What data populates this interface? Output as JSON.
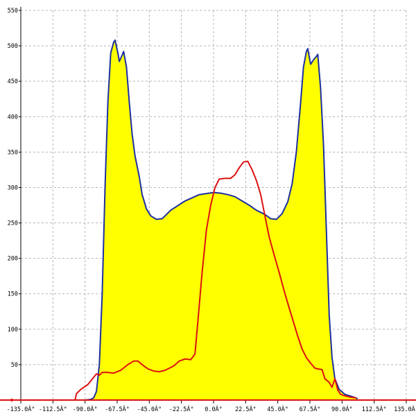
{
  "chart_data": {
    "type": "area",
    "title": "",
    "xlabel": "",
    "ylabel": "",
    "xlim": [
      -135,
      135
    ],
    "ylim": [
      0,
      550
    ],
    "grid": true,
    "x_tick_labels": [
      "-135.0Â°",
      "-112.5Â°",
      "-90.0Â°",
      "-67.5Â°",
      "-45.0Â°",
      "-22.5Â°",
      "0.0Â°",
      "22.5Â°",
      "45.0Â°",
      "67.5Â°",
      "90.0Â°",
      "112.5Â°",
      "135.0Â°"
    ],
    "x_tick_values": [
      -135,
      -112.5,
      -90,
      -67.5,
      -45,
      -22.5,
      0,
      22.5,
      45,
      67.5,
      90,
      112.5,
      135
    ],
    "y_tick_labels": [
      "50",
      "100",
      "150",
      "200",
      "250",
      "300",
      "350",
      "400",
      "450",
      "500",
      "550"
    ],
    "y_tick_values": [
      50,
      100,
      150,
      200,
      250,
      300,
      350,
      400,
      450,
      500,
      550
    ],
    "series": [
      {
        "role": "blue-curve-filled",
        "color": "#1c2fa0",
        "fill": "#ffff00",
        "points": [
          [
            -90,
            0
          ],
          [
            -86,
            1
          ],
          [
            -84,
            3
          ],
          [
            -82,
            12
          ],
          [
            -80,
            50
          ],
          [
            -78,
            150
          ],
          [
            -76,
            300
          ],
          [
            -74,
            420
          ],
          [
            -72,
            490
          ],
          [
            -70,
            505
          ],
          [
            -69,
            508
          ],
          [
            -67,
            490
          ],
          [
            -66,
            478
          ],
          [
            -64,
            487
          ],
          [
            -63,
            492
          ],
          [
            -61,
            470
          ],
          [
            -59,
            420
          ],
          [
            -57,
            375
          ],
          [
            -55,
            345
          ],
          [
            -52,
            315
          ],
          [
            -50,
            290
          ],
          [
            -47,
            270
          ],
          [
            -44,
            260
          ],
          [
            -40,
            255
          ],
          [
            -36,
            256
          ],
          [
            -30,
            268
          ],
          [
            -20,
            281
          ],
          [
            -10,
            290
          ],
          [
            0,
            293
          ],
          [
            5,
            292
          ],
          [
            10,
            290
          ],
          [
            15,
            287
          ],
          [
            20,
            281
          ],
          [
            25,
            275
          ],
          [
            30,
            268
          ],
          [
            36,
            262
          ],
          [
            40,
            256
          ],
          [
            44,
            255
          ],
          [
            48,
            263
          ],
          [
            52,
            280
          ],
          [
            55,
            305
          ],
          [
            58,
            350
          ],
          [
            61,
            420
          ],
          [
            63,
            470
          ],
          [
            65,
            492
          ],
          [
            66,
            496
          ],
          [
            68,
            474
          ],
          [
            70,
            480
          ],
          [
            72,
            485
          ],
          [
            73,
            488
          ],
          [
            75,
            440
          ],
          [
            77,
            360
          ],
          [
            79,
            240
          ],
          [
            81,
            120
          ],
          [
            83,
            60
          ],
          [
            85,
            30
          ],
          [
            88,
            15
          ],
          [
            92,
            8
          ],
          [
            97,
            5
          ],
          [
            101,
            2
          ]
        ]
      },
      {
        "role": "red-curve",
        "color": "#dd1111",
        "points": [
          [
            -97,
            0
          ],
          [
            -96,
            9
          ],
          [
            -93,
            15
          ],
          [
            -88,
            22
          ],
          [
            -84,
            32
          ],
          [
            -82,
            37
          ],
          [
            -80,
            35
          ],
          [
            -78,
            39
          ],
          [
            -74,
            39
          ],
          [
            -70,
            38
          ],
          [
            -65,
            42
          ],
          [
            -60,
            50
          ],
          [
            -56,
            55
          ],
          [
            -53,
            55
          ],
          [
            -50,
            50
          ],
          [
            -46,
            44
          ],
          [
            -42,
            41
          ],
          [
            -38,
            40
          ],
          [
            -34,
            42
          ],
          [
            -28,
            48
          ],
          [
            -24,
            55
          ],
          [
            -20,
            58
          ],
          [
            -16,
            57
          ],
          [
            -13,
            65
          ],
          [
            -11,
            110
          ],
          [
            -8,
            180
          ],
          [
            -5,
            240
          ],
          [
            -2,
            275
          ],
          [
            1,
            300
          ],
          [
            4,
            312
          ],
          [
            8,
            313
          ],
          [
            12,
            313
          ],
          [
            15,
            318
          ],
          [
            18,
            328
          ],
          [
            21,
            336
          ],
          [
            24,
            337
          ],
          [
            27,
            325
          ],
          [
            30,
            310
          ],
          [
            33,
            290
          ],
          [
            36,
            260
          ],
          [
            39,
            230
          ],
          [
            42,
            208
          ],
          [
            46,
            180
          ],
          [
            50,
            150
          ],
          [
            53,
            130
          ],
          [
            56,
            110
          ],
          [
            59,
            90
          ],
          [
            62,
            72
          ],
          [
            65,
            60
          ],
          [
            68,
            52
          ],
          [
            71,
            45
          ],
          [
            73,
            44
          ],
          [
            76,
            43
          ],
          [
            78,
            30
          ],
          [
            81,
            25
          ],
          [
            83,
            18
          ],
          [
            85,
            30
          ],
          [
            87,
            14
          ],
          [
            89,
            8
          ],
          [
            92,
            6
          ],
          [
            96,
            4
          ],
          [
            100,
            3
          ]
        ]
      }
    ]
  }
}
